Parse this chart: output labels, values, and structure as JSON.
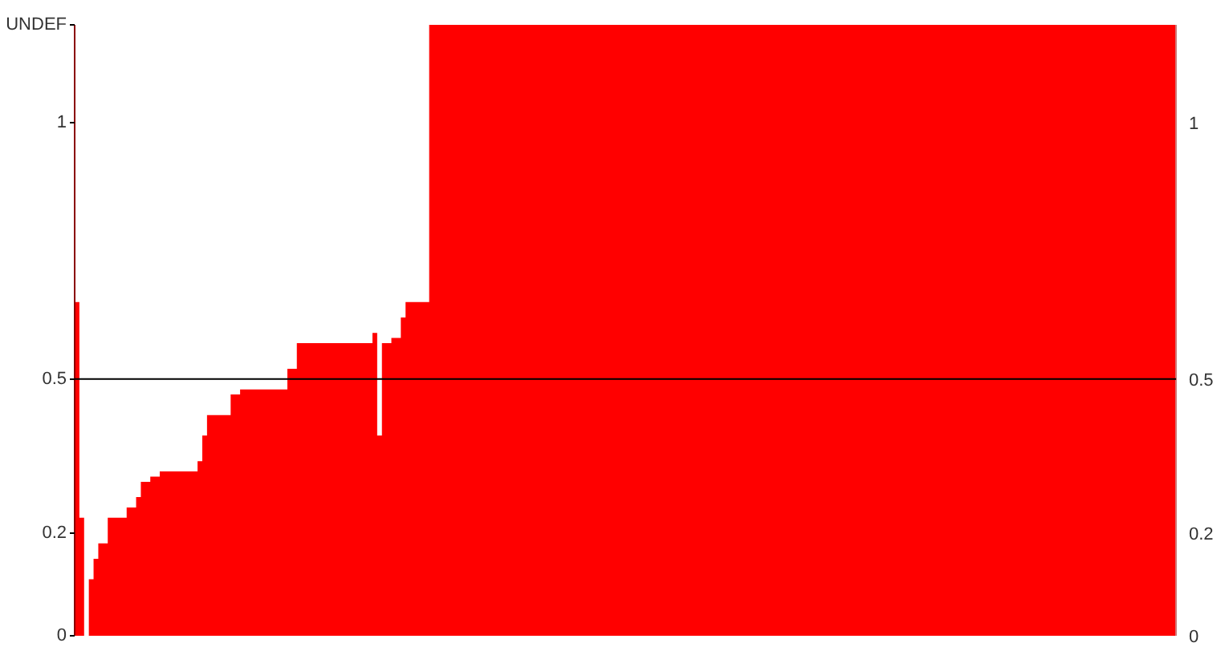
{
  "chart_data": {
    "type": "area",
    "color": "#ff0000",
    "categories": [
      null,
      null,
      null,
      null,
      null,
      null,
      null,
      null,
      null,
      null,
      null,
      null,
      null,
      null,
      null,
      null,
      null,
      null,
      null,
      null,
      null,
      null,
      null,
      null,
      null,
      null,
      null,
      null,
      null,
      null,
      null,
      null,
      null,
      null,
      null,
      null,
      null,
      null,
      null,
      null,
      null,
      null,
      null,
      null,
      null,
      null,
      null,
      null,
      null,
      null,
      null,
      null,
      null,
      null,
      null,
      null,
      null,
      null,
      null,
      null,
      null,
      null,
      null,
      null,
      null,
      null,
      null,
      null,
      null,
      null,
      null,
      null,
      null,
      null,
      null,
      null,
      null,
      null,
      null,
      null,
      null,
      null,
      null,
      null,
      null,
      null,
      null,
      null,
      null,
      null,
      null,
      null,
      null,
      null,
      null,
      null,
      null,
      null,
      null,
      null,
      null,
      null,
      null,
      null,
      null,
      null,
      null,
      null,
      null,
      null,
      null,
      null,
      null,
      null,
      null,
      null,
      null,
      null,
      null,
      null,
      null,
      null,
      null,
      null,
      null,
      null,
      null,
      null,
      null,
      null,
      null,
      null,
      null,
      null,
      null,
      null,
      null,
      null,
      null,
      null,
      null,
      null,
      null,
      null,
      null,
      null,
      null,
      null,
      null,
      null,
      null,
      null,
      null,
      null,
      null,
      null,
      null,
      null,
      null,
      null,
      null,
      null,
      null,
      null,
      null,
      null,
      null,
      null,
      null,
      null,
      null,
      null,
      null,
      null,
      null,
      null,
      null,
      null,
      null,
      null,
      null,
      null,
      null,
      null,
      null,
      null,
      null,
      null,
      null,
      null,
      null,
      null,
      null,
      null,
      null,
      null,
      null,
      null,
      null,
      null,
      null,
      null,
      null,
      null,
      null,
      null,
      null,
      null,
      null,
      null,
      null,
      null,
      null,
      null,
      null,
      null,
      null,
      null,
      null,
      null,
      null,
      null,
      null,
      null,
      null,
      null,
      null,
      null,
      null,
      null,
      null,
      null,
      null
    ],
    "values": [
      0.65,
      0.23,
      0,
      0.11,
      0.15,
      0.18,
      0.18,
      0.23,
      0.23,
      0.23,
      0.23,
      0.25,
      0.25,
      0.27,
      0.3,
      0.3,
      0.31,
      0.31,
      0.32,
      0.32,
      0.32,
      0.32,
      0.32,
      0.32,
      0.32,
      0.32,
      0.34,
      0.39,
      0.43,
      0.43,
      0.43,
      0.43,
      0.43,
      0.47,
      0.47,
      0.48,
      0.48,
      0.48,
      0.48,
      0.48,
      0.48,
      0.48,
      0.48,
      0.48,
      0.48,
      0.52,
      0.52,
      0.57,
      0.57,
      0.57,
      0.57,
      0.57,
      0.57,
      0.57,
      0.57,
      0.57,
      0.57,
      0.57,
      0.57,
      0.57,
      0.57,
      0.57,
      0.57,
      0.59,
      0.39,
      0.57,
      0.57,
      0.58,
      0.58,
      0.62,
      0.65,
      0.65,
      0.65,
      0.65,
      0.65,
      1.19,
      1.19,
      1.19,
      1.19,
      1.19,
      1.19,
      1.19,
      1.19,
      1.19,
      1.19,
      1.19,
      1.19,
      1.19,
      1.19,
      1.19,
      1.19,
      1.19,
      1.19,
      1.19,
      1.19,
      1.19,
      1.19,
      1.19,
      1.19,
      1.19,
      1.19,
      1.19,
      1.19,
      1.19,
      1.19,
      1.19,
      1.19,
      1.19,
      1.19,
      1.19,
      1.19,
      1.19,
      1.19,
      1.19,
      1.19,
      1.19,
      1.19,
      1.19,
      1.19,
      1.19,
      1.19,
      1.19,
      1.19,
      1.19,
      1.19,
      1.19,
      1.19,
      1.19,
      1.19,
      1.19,
      1.19,
      1.19,
      1.19,
      1.19,
      1.19,
      1.19,
      1.19,
      1.19,
      1.19,
      1.19,
      1.19,
      1.19,
      1.19,
      1.19,
      1.19,
      1.19,
      1.19,
      1.19,
      1.19,
      1.19,
      1.19,
      1.19,
      1.19,
      1.19,
      1.19,
      1.19,
      1.19,
      1.19,
      1.19,
      1.19,
      1.19,
      1.19,
      1.19,
      1.19,
      1.19,
      1.19,
      1.19,
      1.19,
      1.19,
      1.19,
      1.19,
      1.19,
      1.19,
      1.19,
      1.19,
      1.19,
      1.19,
      1.19,
      1.19,
      1.19,
      1.19,
      1.19,
      1.19,
      1.19,
      1.19,
      1.19,
      1.19,
      1.19,
      1.19,
      1.19,
      1.19,
      1.19,
      1.19,
      1.19,
      1.19,
      1.19,
      1.19,
      1.19,
      1.19,
      1.19,
      1.19,
      1.19,
      1.19,
      1.19,
      1.19,
      1.19,
      1.19,
      1.19,
      1.19,
      1.19,
      1.19,
      1.19,
      1.19,
      1.19,
      1.19,
      1.19,
      1.19,
      1.19,
      1.19,
      1.19,
      1.19,
      1.19,
      1.19,
      1.19,
      1.19,
      1.19,
      1.19,
      1.19,
      1.19,
      1.19,
      1.19,
      1.19,
      1.19
    ],
    "ylim": [
      0,
      1.19
    ],
    "yticks": [
      0,
      0.2,
      0.5,
      1,
      {
        "value": 1.19,
        "label": "UNDEF"
      }
    ],
    "y2lim": [
      0,
      1.19
    ],
    "y2ticks": [
      0,
      0.2,
      0.5,
      1
    ],
    "ref_lines": [
      {
        "axis": "y",
        "value": 0.5,
        "color": "#000000"
      }
    ],
    "tick_labels": "y"
  }
}
